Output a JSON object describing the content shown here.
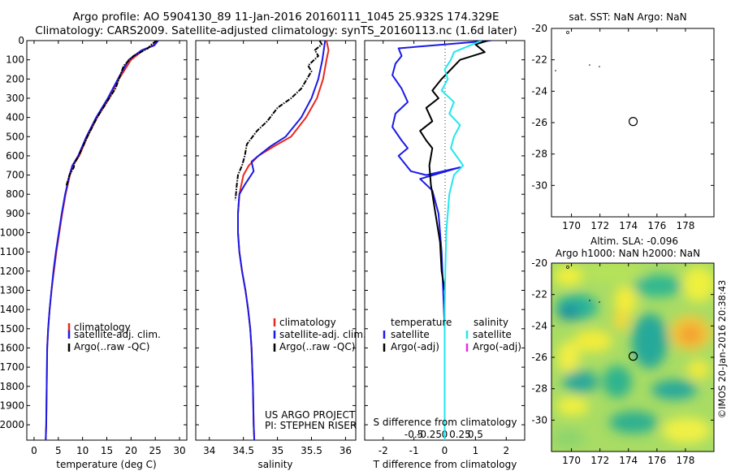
{
  "header": {
    "line1": "Argo profile: AO 5904130_89 11-Jan-2016 20160111_1045 25.932S 174.329E",
    "line2": "Climatology: CARS2009. Satellite-adjusted climatology: synTS_20160113.nc (1.6d later)"
  },
  "side_label": "©IMOS 20-Jan-2016 20:38:43",
  "colors": {
    "climatology": "#e8281e",
    "satellite": "#1a1ae6",
    "argo": "#000000",
    "salinity_satellite": "#22e6ee",
    "salinity_argo": "#e030e0"
  },
  "chart_data": [
    {
      "id": "temperature",
      "type": "line",
      "xlabel": "temperature (deg C)",
      "ylabel": "",
      "xlim": [
        -1.5,
        31.5
      ],
      "ylim": [
        0,
        2080
      ],
      "y_inverted": true,
      "xticks": [
        0,
        5,
        10,
        15,
        20,
        25,
        30
      ],
      "xticklabels": [
        "0",
        "5",
        "10",
        "15",
        "20",
        "25",
        "30"
      ],
      "yticks": [
        0,
        100,
        200,
        300,
        400,
        500,
        600,
        700,
        800,
        900,
        1000,
        1100,
        1200,
        1300,
        1400,
        1500,
        1600,
        1700,
        1800,
        1900,
        2000
      ],
      "yticklabels": [
        "0",
        "100",
        "200",
        "300",
        "400",
        "500",
        "600",
        "700",
        "800",
        "900",
        "1000",
        "1100",
        "1200",
        "1300",
        "1400",
        "1500",
        "1600",
        "1700",
        "1800",
        "1900",
        "2000"
      ],
      "legend": [
        "climatology",
        "satellite-adj. clim.",
        "Argo(..raw -QC)"
      ],
      "series": [
        {
          "name": "climatology",
          "color": "climatology",
          "x": [
            25.2,
            24.5,
            22.5,
            20,
            17.5,
            15.5,
            13,
            11,
            9.3,
            8,
            7.4,
            6.5,
            5.8,
            5.2,
            4.6,
            4.1,
            3.6,
            3.2,
            2.9,
            2.7,
            2.6,
            2.5,
            2.4
          ],
          "y": [
            0,
            25,
            50,
            100,
            200,
            300,
            400,
            500,
            600,
            650,
            700,
            800,
            900,
            1000,
            1100,
            1200,
            1300,
            1400,
            1500,
            1600,
            1800,
            2000,
            2080
          ]
        },
        {
          "name": "satellite-adj. clim.",
          "color": "satellite",
          "x": [
            25.6,
            24.8,
            22.2,
            19.5,
            17.3,
            15.2,
            12.8,
            10.8,
            9.1,
            7.9,
            7.3,
            6.4,
            5.7,
            5.1,
            4.5,
            4,
            3.6,
            3.2,
            2.9,
            2.7,
            2.6,
            2.5,
            2.4
          ],
          "y": [
            0,
            25,
            50,
            100,
            200,
            300,
            400,
            500,
            600,
            650,
            700,
            800,
            900,
            1000,
            1100,
            1200,
            1300,
            1400,
            1500,
            1600,
            1800,
            2000,
            2080
          ]
        },
        {
          "name": "Argo(..raw -QC)",
          "color": "argo",
          "dashed": true,
          "x": [
            25.3,
            24.2,
            23.5,
            22,
            20.5,
            18.5,
            17.5,
            16.8,
            15.5,
            13,
            11,
            9.2,
            8.3,
            8.2,
            7.3,
            6.6
          ],
          "y": [
            0,
            20,
            40,
            60,
            80,
            130,
            200,
            250,
            300,
            400,
            500,
            600,
            640,
            660,
            700,
            760
          ]
        }
      ]
    },
    {
      "id": "salinity",
      "type": "line",
      "xlabel": "salinity",
      "ylabel": "",
      "xlim": [
        33.8,
        36.15
      ],
      "ylim": [
        0,
        2080
      ],
      "y_inverted": true,
      "xticks": [
        34,
        34.5,
        35,
        35.5,
        36
      ],
      "xticklabels": [
        "34",
        "34.5",
        "35",
        "35.5",
        "36"
      ],
      "legend": [
        "climatology",
        "satellite-adj. clim.",
        "Argo(..raw -QC)"
      ],
      "annotations": [
        "US ARGO PROJECT",
        "PI: STEPHEN RISER"
      ],
      "series": [
        {
          "name": "climatology",
          "color": "climatology",
          "x": [
            35.72,
            35.75,
            35.72,
            35.67,
            35.58,
            35.42,
            35.2,
            34.95,
            34.72,
            34.58,
            34.5,
            34.44,
            34.42,
            34.42,
            34.44,
            34.48,
            34.53,
            34.57,
            34.6,
            34.62,
            34.64,
            34.65,
            34.66
          ],
          "y": [
            0,
            50,
            100,
            200,
            300,
            400,
            500,
            550,
            600,
            650,
            700,
            800,
            900,
            1000,
            1100,
            1200,
            1300,
            1400,
            1500,
            1600,
            1800,
            2000,
            2080
          ]
        },
        {
          "name": "satellite-adj. clim.",
          "color": "satellite",
          "x": [
            35.7,
            35.68,
            35.66,
            35.6,
            35.5,
            35.35,
            35.12,
            34.9,
            34.72,
            34.62,
            34.65,
            34.52,
            34.44,
            34.42,
            34.42,
            34.44,
            34.48,
            34.53,
            34.57,
            34.6,
            34.62,
            34.64,
            34.65,
            34.66
          ],
          "y": [
            0,
            50,
            100,
            200,
            300,
            400,
            500,
            550,
            600,
            630,
            680,
            750,
            800,
            900,
            1000,
            1100,
            1200,
            1300,
            1400,
            1500,
            1600,
            1800,
            2000,
            2080
          ]
        },
        {
          "name": "Argo(..raw -QC)",
          "color": "argo",
          "dashed": true,
          "x": [
            35.62,
            35.65,
            35.55,
            35.6,
            35.45,
            35.5,
            35.35,
            35.2,
            35.0,
            34.85,
            34.7,
            34.55,
            34.52,
            34.48,
            34.42,
            34.4,
            34.39,
            34.38
          ],
          "y": [
            0,
            20,
            50,
            80,
            130,
            160,
            250,
            300,
            350,
            420,
            470,
            540,
            600,
            650,
            700,
            760,
            800,
            830
          ]
        }
      ]
    },
    {
      "id": "difference",
      "type": "line",
      "xlabel": "T difference from climatology",
      "xlabel_top": "S difference from climatology",
      "xlim": [
        -2.6,
        2.6
      ],
      "ylim": [
        0,
        2080
      ],
      "y_inverted": true,
      "xticks": [
        -2,
        -1,
        0,
        1,
        2
      ],
      "xticklabels": [
        "-2",
        "-1",
        "0",
        "1",
        "2"
      ],
      "sticklabels": [
        "-0.5",
        "-0.25",
        "0",
        "0.25",
        "0.5"
      ],
      "legend_temperature_title": "temperature",
      "legend_salinity_title": "salinity",
      "legend_temperature": [
        "satellite",
        "Argo(-adj)"
      ],
      "legend_salinity": [
        "satellite",
        "Argo(-adj)"
      ],
      "series": [
        {
          "name": "temperature satellite",
          "color": "satellite",
          "x": [
            1.5,
            -1.5,
            -1.4,
            -1.6,
            -1.7,
            -1.4,
            -1.2,
            -1.6,
            -1.7,
            -1.4,
            -1.2,
            -1.5,
            -1.3,
            -1.1,
            -0.6,
            0.5,
            -0.8,
            -0.4,
            -0.2,
            -0.1,
            -0.05,
            0,
            0,
            0
          ],
          "y": [
            0,
            40,
            80,
            120,
            180,
            250,
            320,
            380,
            450,
            520,
            560,
            600,
            640,
            680,
            700,
            660,
            720,
            780,
            900,
            1100,
            1300,
            1500,
            1800,
            2080
          ]
        },
        {
          "name": "temperature Argo(-adj)",
          "color": "argo",
          "x": [
            1.4,
            1.0,
            1.3,
            0.5,
            0.2,
            -0.1,
            -0.4,
            -0.2,
            -0.6,
            -0.4,
            -0.8,
            -0.6,
            -0.4,
            -0.5,
            -0.45,
            -0.3,
            -0.15,
            -0.1,
            0
          ],
          "y": [
            0,
            20,
            60,
            100,
            150,
            200,
            260,
            300,
            350,
            420,
            470,
            520,
            560,
            650,
            750,
            900,
            1050,
            1200,
            1300
          ]
        },
        {
          "name": "salinity satellite",
          "color": "salinity_satellite",
          "x": [
            1.2,
            0.3,
            0.2,
            0,
            0.1,
            -0.1,
            0.3,
            0.15,
            0.5,
            0.3,
            0.2,
            0.6,
            0.3,
            0.15,
            0.1,
            0.05,
            0.02,
            0,
            0
          ],
          "y": [
            0,
            60,
            100,
            150,
            200,
            260,
            320,
            380,
            440,
            500,
            560,
            650,
            700,
            800,
            900,
            1000,
            1200,
            1400,
            2080
          ]
        }
      ]
    },
    {
      "id": "sst_map",
      "type": "scatter",
      "title": "sat. SST: NaN Argo: NaN",
      "xlim": [
        168.6,
        180
      ],
      "ylim": [
        -32,
        -20
      ],
      "xticks": [
        170,
        172,
        174,
        176,
        178
      ],
      "xticklabels": [
        "170",
        "172",
        "174",
        "176",
        "178"
      ],
      "yticks": [
        -20,
        -22,
        -24,
        -26,
        -28,
        -30
      ],
      "yticklabels": [
        "-20",
        "-22",
        "-24",
        "-26",
        "-28",
        "-30"
      ],
      "points": [
        {
          "x": 174.33,
          "y": -25.93,
          "marker": "circle"
        }
      ]
    },
    {
      "id": "sla_map",
      "type": "heatmap",
      "title_line1": "Altim. SLA: -0.096",
      "title_line2": "Argo h1000: NaN h2000: NaN",
      "xlim": [
        168.6,
        180
      ],
      "ylim": [
        -32,
        -20
      ],
      "xticks": [
        170,
        172,
        174,
        176,
        178
      ],
      "xticklabels": [
        "170",
        "172",
        "174",
        "176",
        "178"
      ],
      "yticks": [
        -20,
        -22,
        -24,
        -26,
        -28,
        -30
      ],
      "yticklabels": [
        "-20",
        "-22",
        "-24",
        "-26",
        "-28",
        "-30"
      ],
      "points": [
        {
          "x": 174.33,
          "y": -25.93,
          "marker": "circle"
        }
      ]
    }
  ]
}
